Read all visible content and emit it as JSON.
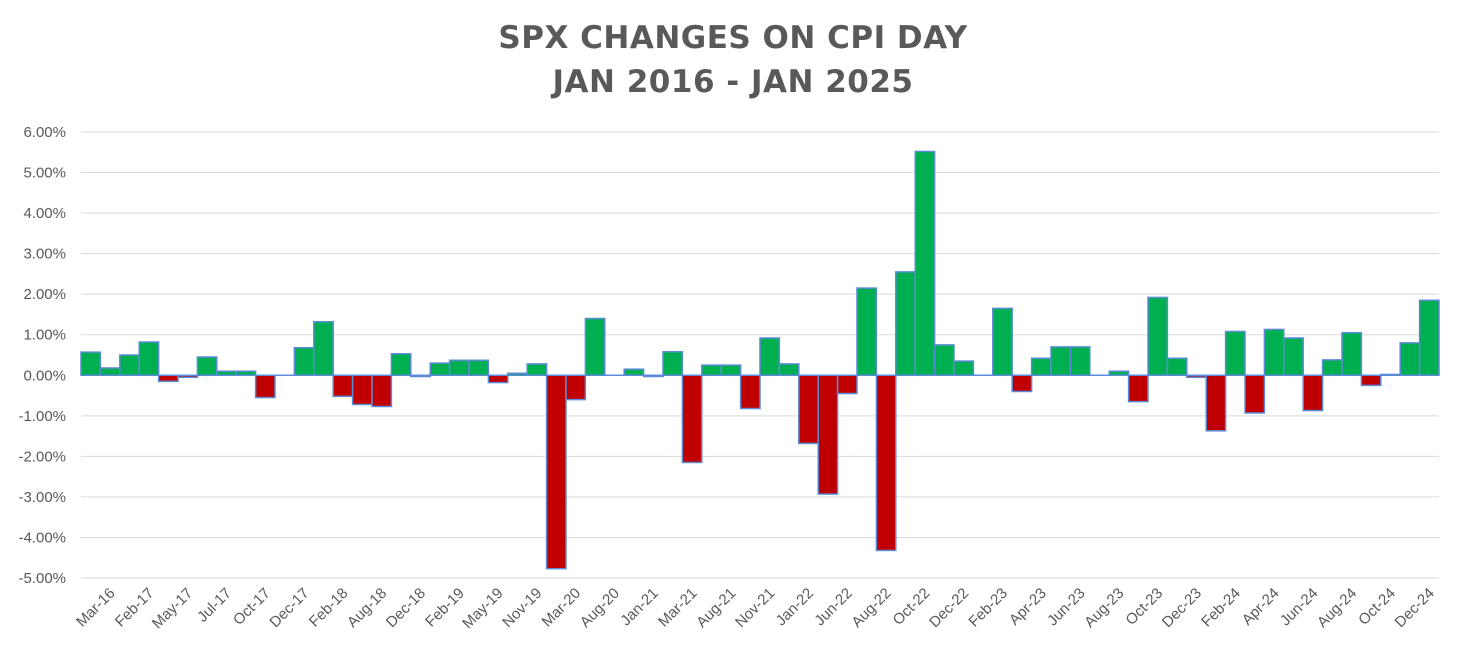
{
  "chart_data": {
    "type": "bar",
    "title": "SPX CHANGES ON CPI DAY",
    "subtitle": "JAN 2016 - JAN 2025",
    "xlabel": "",
    "ylabel": "",
    "ylim": [
      -5.0,
      6.0
    ],
    "yticks": [
      "6.00%",
      "5.00%",
      "4.00%",
      "3.00%",
      "2.00%",
      "1.00%",
      "0.00%",
      "-1.00%",
      "-2.00%",
      "-3.00%",
      "-4.00%",
      "-5.00%"
    ],
    "ytick_values": [
      6,
      5,
      4,
      3,
      2,
      1,
      0,
      -1,
      -2,
      -3,
      -4,
      -5
    ],
    "grid": true,
    "legend": "none",
    "colors": {
      "positive": "#00b050",
      "negative": "#c00000",
      "border": "#5b8bd6",
      "grid": "#d9d9d9"
    },
    "x_tick_labels": [
      "Mar-16",
      "Feb-17",
      "May-17",
      "Jul-17",
      "Oct-17",
      "Dec-17",
      "Feb-18",
      "Aug-18",
      "Dec-18",
      "Feb-19",
      "May-19",
      "Nov-19",
      "Mar-20",
      "Aug-20",
      "Jan-21",
      "Mar-21",
      "Aug-21",
      "Nov-21",
      "Jan-22",
      "Jun-22",
      "Aug-22",
      "Oct-22",
      "Dec-22",
      "Feb-23",
      "Apr-23",
      "Jun-23",
      "Aug-23",
      "Oct-23",
      "Dec-23",
      "Feb-24",
      "Apr-24",
      "Jun-24",
      "Aug-24",
      "Oct-24",
      "Dec-24"
    ],
    "values": [
      0.57,
      0.18,
      0.5,
      0.82,
      -0.15,
      -0.05,
      0.45,
      0.1,
      0.1,
      -0.55,
      0.0,
      0.68,
      1.32,
      -0.52,
      -0.72,
      -0.77,
      0.53,
      -0.03,
      0.3,
      0.37,
      0.37,
      -0.18,
      0.05,
      0.28,
      -4.77,
      -0.6,
      1.4,
      0.0,
      0.15,
      -0.03,
      0.58,
      -2.15,
      0.25,
      0.25,
      -0.82,
      0.92,
      0.28,
      -1.68,
      -2.93,
      -0.45,
      2.15,
      -4.32,
      2.55,
      5.52,
      0.75,
      0.35,
      0.0,
      1.65,
      -0.4,
      0.42,
      0.7,
      0.7,
      0.0,
      0.1,
      -0.65,
      1.92,
      0.42,
      -0.05,
      -1.37,
      1.08,
      -0.93,
      1.13,
      0.92,
      -0.87,
      0.38,
      1.05,
      -0.25,
      0.02,
      0.8,
      1.85
    ]
  }
}
